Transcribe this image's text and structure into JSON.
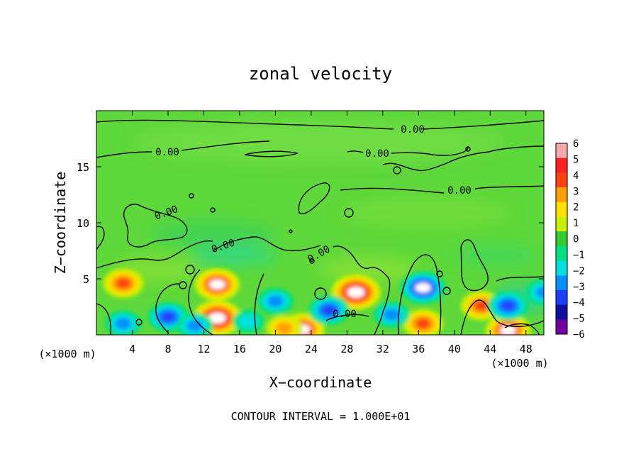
{
  "chart_data": {
    "type": "heatmap",
    "title": "zonal velocity",
    "xlabel": "X−coordinate",
    "ylabel": "Z−coordinate",
    "x_unit_left": "(×1000 m)",
    "x_unit_right": "(×1000 m)",
    "xlim": [
      0,
      50
    ],
    "ylim": [
      0,
      20
    ],
    "x_ticks": [
      4,
      8,
      12,
      16,
      20,
      24,
      28,
      32,
      36,
      40,
      44,
      48
    ],
    "y_ticks": [
      5,
      10,
      15
    ],
    "colorbar": {
      "levels": [
        6,
        5,
        4,
        3,
        2,
        1,
        0,
        -1,
        -2,
        -3,
        -4,
        -5,
        -6
      ],
      "labels": [
        "6",
        "5",
        "4",
        "3",
        "2",
        "1",
        "0",
        "−1",
        "−2",
        "−3",
        "−4",
        "−5",
        "−6"
      ],
      "colors": [
        "#f7a8a8",
        "#ff2020",
        "#ff4010",
        "#ffa000",
        "#ffe000",
        "#c8f000",
        "#32cd32",
        "#00e080",
        "#00e0e0",
        "#0090ff",
        "#2040ff",
        "#1010a0",
        "#7000a0"
      ]
    },
    "field_background": "#5ed83a",
    "contour_labels": [
      "0.00",
      "0.00",
      "0.00",
      "0.00",
      "0.00",
      "0.00",
      "0.00",
      "0.00"
    ],
    "anomalies": [
      {
        "x": 3,
        "z": 4.6,
        "value": 4
      },
      {
        "x": 13.5,
        "z": 4.5,
        "value": 5
      },
      {
        "x": 13.5,
        "z": 1.5,
        "value": 6
      },
      {
        "x": 29,
        "z": 3.8,
        "value": 6
      },
      {
        "x": 36.5,
        "z": 1.0,
        "value": 4
      },
      {
        "x": 23,
        "z": 0.5,
        "value": 5
      },
      {
        "x": 43,
        "z": 2.6,
        "value": 4
      },
      {
        "x": 46,
        "z": 0.4,
        "value": 5
      },
      {
        "x": 36.5,
        "z": 4.2,
        "value": -5
      },
      {
        "x": 26,
        "z": 2.2,
        "value": -4
      },
      {
        "x": 8,
        "z": 1.6,
        "value": -4
      },
      {
        "x": 20,
        "z": 3.0,
        "value": -3
      },
      {
        "x": 46,
        "z": 2.6,
        "value": -4
      },
      {
        "x": 3,
        "z": 1.0,
        "value": -3
      },
      {
        "x": 11,
        "z": 0.8,
        "value": -3
      },
      {
        "x": 33,
        "z": 1.8,
        "value": -3
      },
      {
        "x": 50,
        "z": 3.8,
        "value": -3
      },
      {
        "x": 21,
        "z": 0.6,
        "value": 3
      },
      {
        "x": 17,
        "z": 1.2,
        "value": -2
      }
    ]
  },
  "footer": {
    "contour_interval": "CONTOUR INTERVAL = 1.000E+01"
  }
}
